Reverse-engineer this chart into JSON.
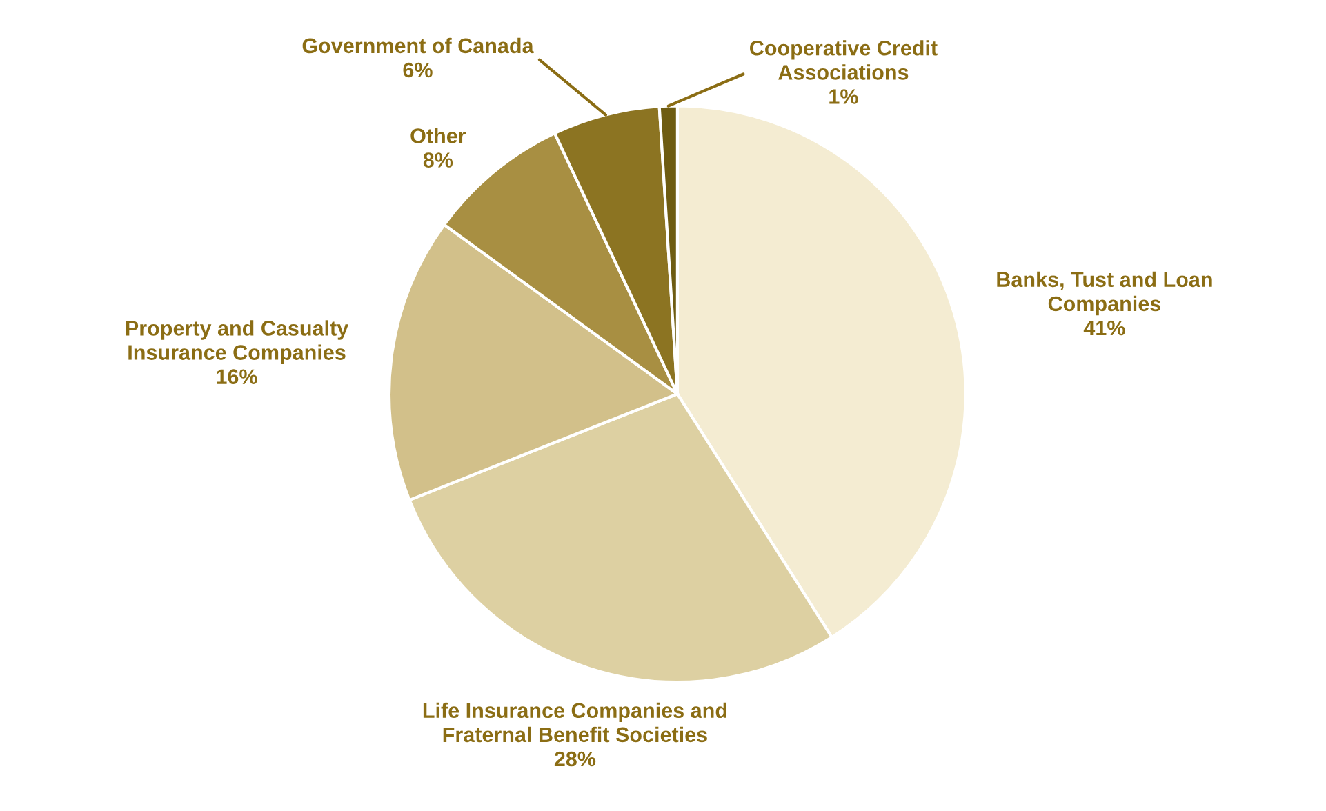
{
  "chart_data": {
    "type": "pie",
    "categories": [
      "Banks, Tust and Loan\nCompanies",
      "Life Insurance Companies and\nFraternal Benefit Societies",
      "Property and Casualty\nInsurance Companies",
      "Other",
      "Government of Canada",
      "Cooperative Credit\nAssociations"
    ],
    "values": [
      41,
      28,
      16,
      8,
      6,
      1
    ],
    "colors": [
      "#f4ecd2",
      "#ddd0a2",
      "#d2c08a",
      "#a88f42",
      "#8c7422",
      "#6e5c12"
    ],
    "value_labels": [
      "41%",
      "28%",
      "16%",
      "8%",
      "6%",
      "1%"
    ],
    "data_labels": true
  }
}
